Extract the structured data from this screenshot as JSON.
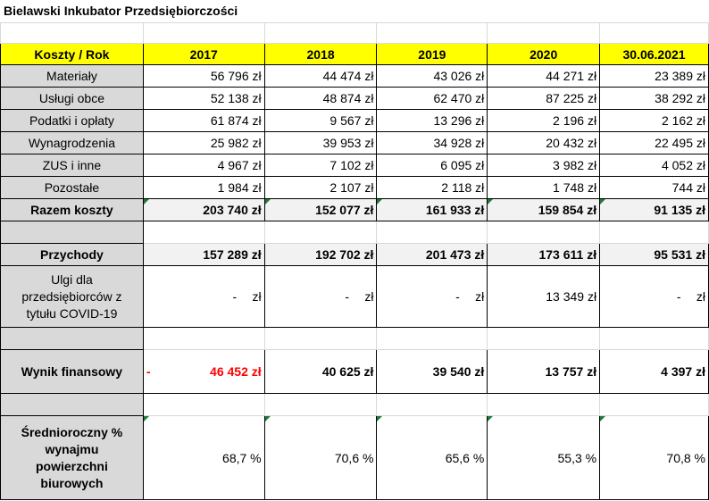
{
  "title": "Bielawski Inkubator Przedsiębiorczości",
  "header": {
    "label": "Koszty / Rok",
    "years": [
      "2017",
      "2018",
      "2019",
      "2020",
      "30.06.2021"
    ]
  },
  "costs": [
    {
      "label": "Materiały",
      "values": [
        "56 796 zł",
        "44 474 zł",
        "43 026 zł",
        "44 271 zł",
        "23 389 zł"
      ]
    },
    {
      "label": "Usługi obce",
      "values": [
        "52 138 zł",
        "48 874 zł",
        "62 470 zł",
        "87 225 zł",
        "38 292 zł"
      ]
    },
    {
      "label": "Podatki i opłaty",
      "values": [
        "61 874 zł",
        "9 567 zł",
        "13 296 zł",
        "2 196 zł",
        "2 162 zł"
      ]
    },
    {
      "label": "Wynagrodzenia",
      "values": [
        "25 982 zł",
        "39 953 zł",
        "34 928 zł",
        "20 432 zł",
        "22 495 zł"
      ]
    },
    {
      "label": "ZUS i inne",
      "values": [
        "4 967 zł",
        "7 102 zł",
        "6 095 zł",
        "3 982 zł",
        "4 052 zł"
      ]
    },
    {
      "label": "Pozostałe",
      "values": [
        "1 984 zł",
        "2 107 zł",
        "2 118 zł",
        "1 748 zł",
        "744 zł"
      ]
    }
  ],
  "total_costs": {
    "label": "Razem koszty",
    "values": [
      "203 740 zł",
      "152 077 zł",
      "161 933 zł",
      "159 854 zł",
      "91 135 zł"
    ]
  },
  "revenue": {
    "label": "Przychody",
    "values": [
      "157 289 zł",
      "192 702 zł",
      "201 473 zł",
      "173 611 zł",
      "95 531 zł"
    ]
  },
  "relief": {
    "label_lines": [
      "Ulgi dla",
      "przedsiębiorców z",
      "tytułu COVID-19"
    ],
    "dash": "-",
    "unit": "zł",
    "value_2020": "13 349 zł"
  },
  "result": {
    "label": "Wynik finansowy",
    "minus_sign": "-",
    "values": [
      "46 452 zł",
      "40 625 zł",
      "39 540 zł",
      "13 757 zł",
      "4 397 zł"
    ],
    "negative_color": "#ff0000"
  },
  "occupancy": {
    "label_lines": [
      "Średnioroczny %",
      "wynajmu",
      "powierzchni",
      "biurowych"
    ],
    "values": [
      "68,7 %",
      "70,6 %",
      "65,6 %",
      "55,3 %",
      "70,8 %"
    ]
  },
  "colors": {
    "header_bg": "#ffff00",
    "label_bg": "#d9d9d9",
    "grid": "#d9d9d9",
    "flag": "#1f7a3a"
  }
}
